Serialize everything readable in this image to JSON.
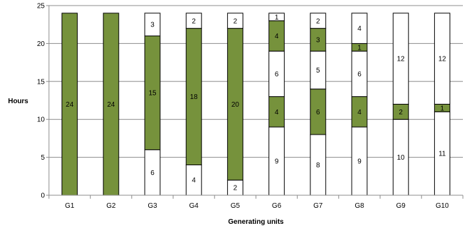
{
  "chart_data": {
    "type": "bar",
    "stacked": true,
    "title": "",
    "xlabel": "Generating units",
    "ylabel": "Hours",
    "ylim": [
      0,
      25
    ],
    "yticks": [
      0,
      5,
      10,
      15,
      20,
      25
    ],
    "grid": true,
    "legend": "none",
    "categories": [
      "G1",
      "G2",
      "G3",
      "G4",
      "G5",
      "G6",
      "G7",
      "G8",
      "G9",
      "G10"
    ],
    "segment_colors": {
      "green": "#76923c",
      "white": "#ffffff",
      "outline": "#000000"
    },
    "stacks": [
      [
        {
          "value": 24,
          "color": "green"
        }
      ],
      [
        {
          "value": 24,
          "color": "green"
        }
      ],
      [
        {
          "value": 6,
          "color": "white"
        },
        {
          "value": 15,
          "color": "green"
        },
        {
          "value": 3,
          "color": "white"
        }
      ],
      [
        {
          "value": 4,
          "color": "white"
        },
        {
          "value": 18,
          "color": "green"
        },
        {
          "value": 2,
          "color": "white"
        }
      ],
      [
        {
          "value": 2,
          "color": "white"
        },
        {
          "value": 20,
          "color": "green"
        },
        {
          "value": 2,
          "color": "white"
        }
      ],
      [
        {
          "value": 9,
          "color": "white"
        },
        {
          "value": 4,
          "color": "green"
        },
        {
          "value": 6,
          "color": "white"
        },
        {
          "value": 4,
          "color": "green"
        },
        {
          "value": 1,
          "color": "white"
        }
      ],
      [
        {
          "value": 8,
          "color": "white"
        },
        {
          "value": 6,
          "color": "green"
        },
        {
          "value": 5,
          "color": "white"
        },
        {
          "value": 3,
          "color": "green"
        },
        {
          "value": 2,
          "color": "white"
        }
      ],
      [
        {
          "value": 9,
          "color": "white"
        },
        {
          "value": 4,
          "color": "green"
        },
        {
          "value": 6,
          "color": "white"
        },
        {
          "value": 1,
          "color": "green"
        },
        {
          "value": 4,
          "color": "white"
        }
      ],
      [
        {
          "value": 10,
          "color": "white"
        },
        {
          "value": 2,
          "color": "green"
        },
        {
          "value": 12,
          "color": "white"
        }
      ],
      [
        {
          "value": 11,
          "color": "white"
        },
        {
          "value": 1,
          "color": "green"
        },
        {
          "value": 12,
          "color": "white"
        }
      ]
    ]
  }
}
